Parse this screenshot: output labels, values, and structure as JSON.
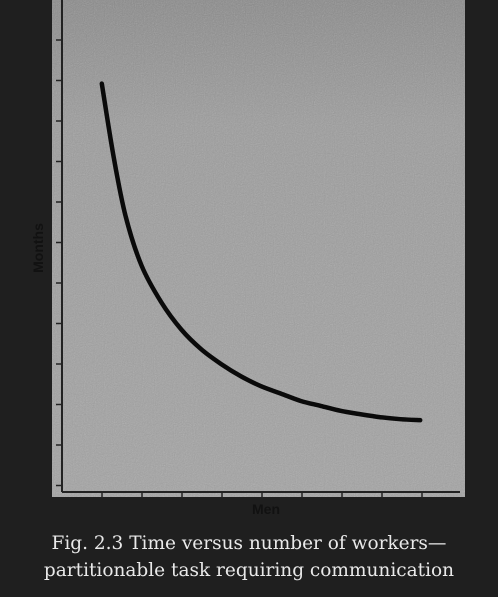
{
  "caption": {
    "line1": "Fig. 2.3 Time versus number of workers—",
    "line2": "partitionable task requiring communication"
  },
  "chart_data": {
    "type": "line",
    "title": "",
    "xlabel": "Men",
    "ylabel": "Months",
    "xlim": [
      0,
      10
    ],
    "ylim": [
      0,
      10
    ],
    "grid": false,
    "series": [
      {
        "values_x": [
          1.0,
          1.3,
          1.6,
          2.0,
          2.5,
          3.0,
          3.5,
          4.0,
          4.5,
          5.0,
          5.5,
          6.0,
          6.5,
          7.0,
          7.5,
          8.0,
          8.5,
          9.0
        ],
        "values_y": [
          8.3,
          6.8,
          5.6,
          4.6,
          3.85,
          3.3,
          2.9,
          2.6,
          2.35,
          2.15,
          2.0,
          1.85,
          1.75,
          1.65,
          1.58,
          1.52,
          1.48,
          1.46
        ],
        "color": "#0a0a0a"
      }
    ],
    "colors": {
      "plot_background": "#9a9a9a",
      "line": "#0a0a0a",
      "axis": "#222222"
    }
  }
}
